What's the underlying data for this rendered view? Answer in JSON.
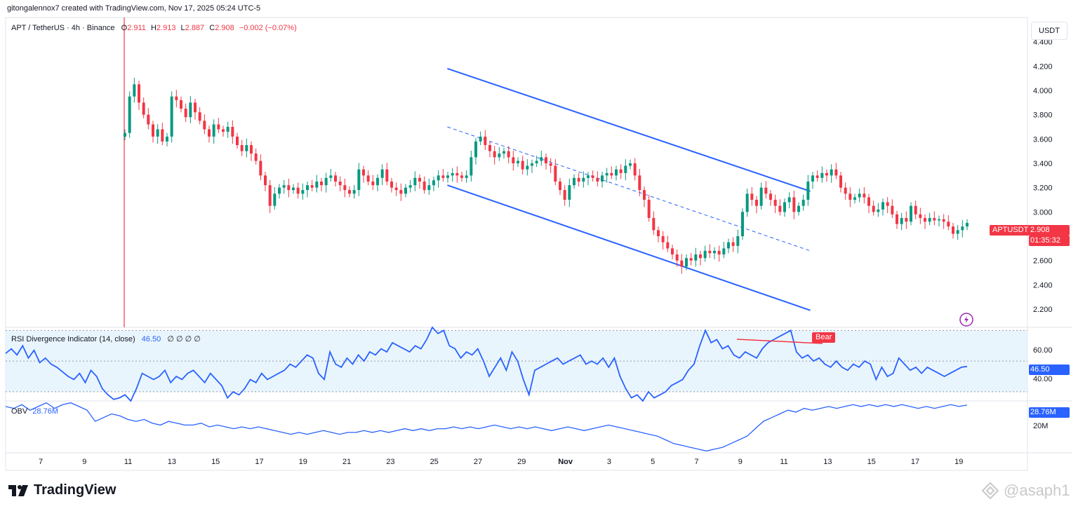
{
  "header": {
    "credit": "gitongalennox7 created with TradingView.com, Nov 17, 2025 05:24 UTC-5"
  },
  "symbol": {
    "name": "APT / TetherUS · 4h · Binance",
    "o_label": "O",
    "o": "2.911",
    "h_label": "H",
    "h": "2.913",
    "l_label": "L",
    "l": "2.887",
    "c_label": "C",
    "c": "2.908",
    "change": "−0.002 (−0.07%)"
  },
  "currency_button": "USDT",
  "price_tag": {
    "ticker": "APTUSDT",
    "price": "2.908",
    "countdown": "01:35:32",
    "partial_label": "2.800"
  },
  "rsi_pane": {
    "title": "RSI Divergence Indicator (14, close)",
    "value": "46.50",
    "extras": "∅ ∅ ∅ ∅",
    "value_tag": "46.50",
    "bear_label": "Bear",
    "y_labels": [
      "60.00",
      "40.00"
    ]
  },
  "obv_pane": {
    "title": "OBV",
    "value": "28.76M",
    "value_tag": "28.76M",
    "y_labels": [
      "20M"
    ]
  },
  "footer": {
    "logo_text": "TradingView",
    "watermark": "@asaph1"
  },
  "colors": {
    "up": "#089981",
    "down": "#f23645",
    "channel": "#2962ff",
    "rsi_band": "#e3f2fd",
    "line": "#2962ff"
  },
  "chart_data": [
    {
      "type": "candlestick",
      "title": "APT / TetherUS · 4h · Binance",
      "x_tick_labels": [
        "7",
        "9",
        "11",
        "13",
        "15",
        "17",
        "19",
        "21",
        "23",
        "25",
        "27",
        "29",
        "Nov",
        "3",
        "5",
        "7",
        "9",
        "11",
        "13",
        "15",
        "17",
        "19"
      ],
      "y_tick_labels": [
        "4.400",
        "4.200",
        "4.000",
        "3.800",
        "3.600",
        "3.400",
        "3.200",
        "3.000",
        "2.600",
        "2.400",
        "2.200"
      ],
      "ylim": [
        2.05,
        4.6
      ],
      "grid": false,
      "last_price": 2.908,
      "closes": [
        3.65,
        3.95,
        4.05,
        3.9,
        3.8,
        3.72,
        3.62,
        3.68,
        3.58,
        3.62,
        3.95,
        3.92,
        3.85,
        3.78,
        3.9,
        3.82,
        3.75,
        3.68,
        3.62,
        3.72,
        3.68,
        3.66,
        3.7,
        3.62,
        3.55,
        3.5,
        3.55,
        3.48,
        3.42,
        3.3,
        3.22,
        3.05,
        3.15,
        3.2,
        3.22,
        3.18,
        3.2,
        3.15,
        3.18,
        3.22,
        3.2,
        3.25,
        3.22,
        3.28,
        3.3,
        3.25,
        3.22,
        3.18,
        3.15,
        3.18,
        3.35,
        3.3,
        3.25,
        3.22,
        3.28,
        3.35,
        3.25,
        3.2,
        3.18,
        3.15,
        3.2,
        3.22,
        3.28,
        3.25,
        3.18,
        3.22,
        3.26,
        3.3,
        3.28,
        3.3,
        3.32,
        3.3,
        3.28,
        3.3,
        3.45,
        3.58,
        3.62,
        3.55,
        3.5,
        3.45,
        3.48,
        3.5,
        3.45,
        3.4,
        3.42,
        3.35,
        3.38,
        3.4,
        3.42,
        3.45,
        3.4,
        3.38,
        3.25,
        3.18,
        3.1,
        3.22,
        3.28,
        3.25,
        3.28,
        3.3,
        3.28,
        3.25,
        3.3,
        3.32,
        3.3,
        3.35,
        3.32,
        3.38,
        3.4,
        3.3,
        3.18,
        3.1,
        2.95,
        2.85,
        2.8,
        2.75,
        2.7,
        2.65,
        2.6,
        2.55,
        2.62,
        2.6,
        2.65,
        2.62,
        2.68,
        2.66,
        2.68,
        2.65,
        2.7,
        2.75,
        2.72,
        2.8,
        3.0,
        3.15,
        3.1,
        3.05,
        3.2,
        3.15,
        3.1,
        3.05,
        3.0,
        3.08,
        3.12,
        3.0,
        3.05,
        3.1,
        3.25,
        3.3,
        3.28,
        3.32,
        3.3,
        3.35,
        3.3,
        3.2,
        3.15,
        3.1,
        3.12,
        3.15,
        3.12,
        3.05,
        3.0,
        3.02,
        3.08,
        3.05,
        2.98,
        2.9,
        2.95,
        2.92,
        3.05,
        2.98,
        2.95,
        2.92,
        2.95,
        2.93,
        2.94,
        2.92,
        2.88,
        2.82,
        2.85,
        2.88,
        2.91
      ],
      "channel": {
        "upper": [
          [
            9.3,
            4.18
          ],
          [
            17.6,
            3.17
          ]
        ],
        "middle": [
          [
            9.3,
            3.7
          ],
          [
            17.6,
            2.68
          ]
        ],
        "lower": [
          [
            9.3,
            3.22
          ],
          [
            17.6,
            2.19
          ]
        ]
      }
    },
    {
      "type": "line",
      "title": "RSI Divergence Indicator (14, close)",
      "y_tick_labels": [
        "60.00",
        "40.00"
      ],
      "ylim": [
        24,
        72
      ],
      "band": [
        30,
        70
      ],
      "last_value": 46.5,
      "values": [
        55,
        58,
        54,
        60,
        52,
        57,
        49,
        52,
        48,
        46,
        43,
        40,
        38,
        42,
        36,
        44,
        40,
        32,
        28,
        25,
        26,
        28,
        24,
        32,
        42,
        40,
        38,
        40,
        44,
        36,
        40,
        38,
        42,
        44,
        40,
        36,
        42,
        38,
        34,
        26,
        30,
        28,
        32,
        38,
        36,
        42,
        38,
        40,
        42,
        44,
        48,
        46,
        50,
        54,
        52,
        42,
        38,
        56,
        48,
        46,
        52,
        48,
        54,
        50,
        56,
        54,
        58,
        56,
        62,
        60,
        58,
        56,
        60,
        58,
        64,
        72,
        68,
        70,
        60,
        58,
        52,
        56,
        54,
        58,
        50,
        40,
        46,
        52,
        44,
        56,
        50,
        38,
        28,
        44,
        46,
        48,
        50,
        52,
        48,
        50,
        52,
        54,
        48,
        50,
        48,
        52,
        46,
        52,
        40,
        32,
        26,
        28,
        24,
        30,
        26,
        28,
        30,
        34,
        36,
        38,
        44,
        48,
        60,
        70,
        62,
        64,
        58,
        60,
        54,
        52,
        56,
        54,
        52,
        58,
        62,
        64,
        66,
        68,
        70,
        56,
        52,
        54,
        50,
        52,
        48,
        46,
        50,
        46,
        44,
        48,
        46,
        50,
        48,
        38,
        46,
        40,
        42,
        52,
        48,
        44,
        46,
        42,
        46,
        44,
        42,
        40,
        42,
        44,
        46,
        46.5
      ],
      "divergence": {
        "label": "Bear"
      }
    },
    {
      "type": "line",
      "title": "OBV",
      "y_tick_labels": [
        "20M"
      ],
      "last_value": "28.76M",
      "values": [
        28,
        27,
        29,
        26,
        28,
        30,
        27,
        29,
        30,
        28,
        26,
        20,
        22,
        24,
        23,
        21,
        20,
        21,
        19,
        18,
        20,
        19,
        18,
        18,
        19,
        17,
        18,
        17,
        16,
        17,
        16,
        17,
        16,
        15,
        14,
        13,
        14,
        13,
        14,
        15,
        14,
        13,
        14,
        14,
        15,
        14,
        15,
        14,
        15,
        16,
        15,
        16,
        15,
        16,
        16,
        17,
        16,
        17,
        16,
        17,
        18,
        17,
        16,
        17,
        16,
        17,
        16,
        15,
        16,
        17,
        16,
        15,
        16,
        17,
        18,
        17,
        16,
        15,
        14,
        13,
        12,
        10,
        8,
        7,
        6,
        5,
        4,
        5,
        6,
        8,
        10,
        12,
        16,
        20,
        22,
        24,
        26,
        25,
        27,
        26,
        27,
        28,
        27,
        28,
        29,
        28,
        29,
        28,
        29,
        28,
        29,
        28,
        27,
        28,
        27,
        28,
        29,
        28,
        28.76
      ]
    }
  ]
}
